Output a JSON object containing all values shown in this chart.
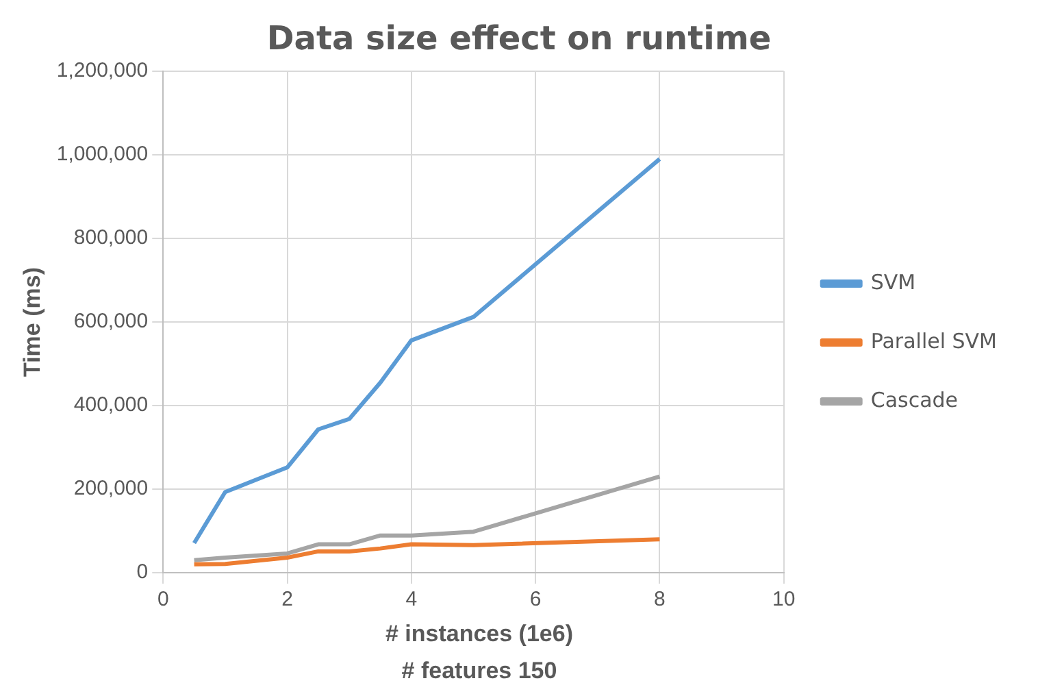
{
  "chart_data": {
    "type": "line",
    "title": "Data size effect on runtime",
    "xlabel": "# instances (1e6)",
    "annotations": [
      "# features 150"
    ],
    "ylabel": "Time (ms)",
    "x": [
      0.5,
      1,
      2,
      2.5,
      3,
      3.5,
      4,
      5,
      8
    ],
    "series": [
      {
        "name": "SVM",
        "color": "#5b9bd5",
        "values": [
          71000,
          193000,
          252000,
          343000,
          368000,
          455000,
          556000,
          612000,
          990000
        ]
      },
      {
        "name": "Parallel SVM",
        "color": "#ed7d31",
        "values": [
          20000,
          21000,
          36000,
          51000,
          51000,
          58000,
          68000,
          66000,
          80000
        ]
      },
      {
        "name": "Cascade",
        "color": "#a5a5a5",
        "values": [
          30000,
          36000,
          46000,
          68000,
          68000,
          89000,
          89000,
          98000,
          230000
        ]
      }
    ],
    "xlim": [
      0,
      10
    ],
    "xticks": [
      0,
      2,
      4,
      6,
      8,
      10
    ],
    "ylim": [
      0,
      1200000
    ],
    "yticks": [
      0,
      {
        "value": 200000,
        "label": "200,000"
      },
      {
        "value": 400000,
        "label": "400,000"
      },
      {
        "value": 600000,
        "label": "600,000"
      },
      {
        "value": 800000,
        "label": "800,000"
      },
      {
        "value": 1000000,
        "label": "1,000,000"
      },
      {
        "value": 1200000,
        "label": "1,200,000"
      }
    ],
    "grid": true,
    "legend": "right",
    "marker": "none",
    "line_style": "solid"
  }
}
